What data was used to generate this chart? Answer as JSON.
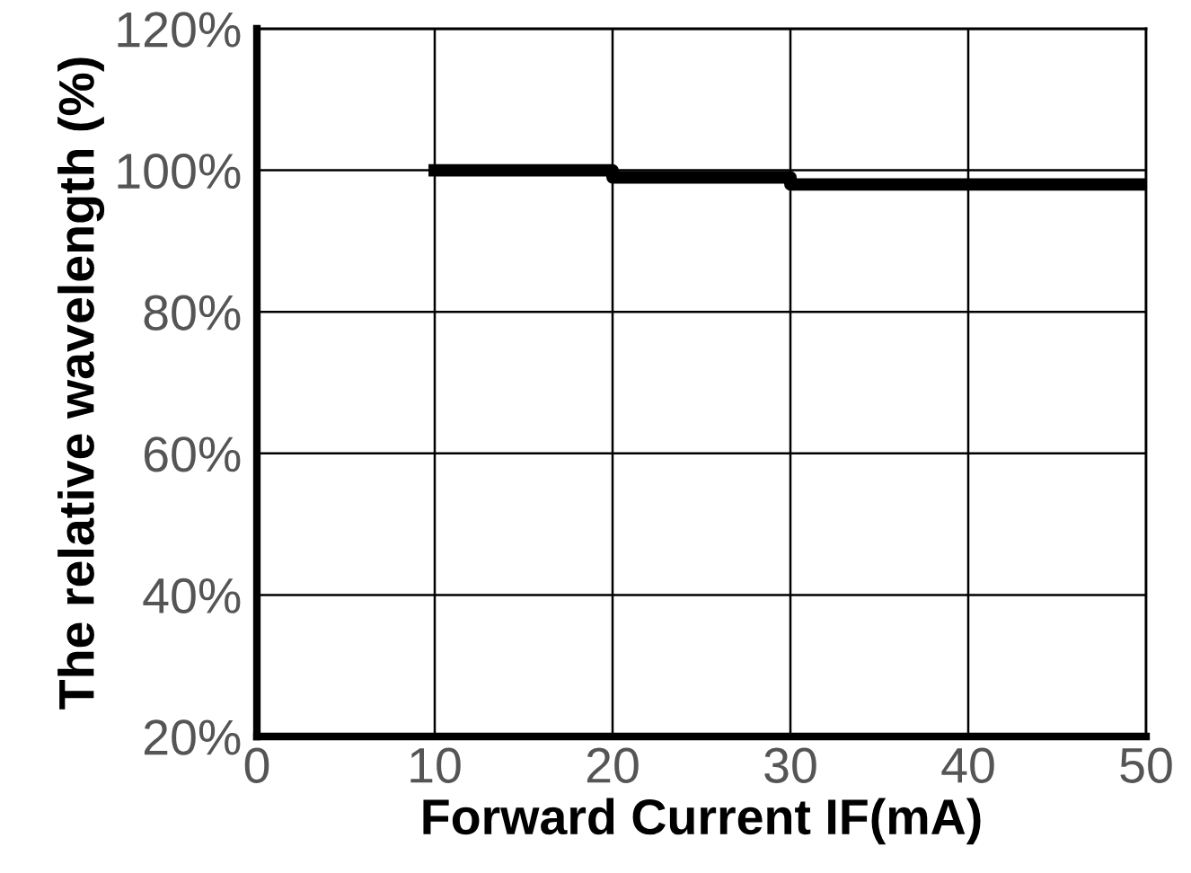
{
  "chart_data": {
    "type": "step",
    "xlabel": "Forward Current IF(mA)",
    "ylabel": "The relative wavelength (%)",
    "x": [
      10,
      20,
      30,
      50
    ],
    "series": [
      {
        "color": "#000000",
        "values": [
          100,
          99,
          98,
          98
        ]
      }
    ],
    "xlim": [
      0,
      50
    ],
    "xticks": [
      0,
      10,
      20,
      30,
      40,
      50
    ],
    "ylim": [
      20,
      120
    ],
    "yticks": [
      {
        "value": 20,
        "label": "20%"
      },
      {
        "value": 40,
        "label": "40%"
      },
      {
        "value": 60,
        "label": "60%"
      },
      {
        "value": 80,
        "label": "80%"
      },
      {
        "value": 100,
        "label": "100%"
      },
      {
        "value": 120,
        "label": "120%"
      }
    ],
    "grid": true
  }
}
